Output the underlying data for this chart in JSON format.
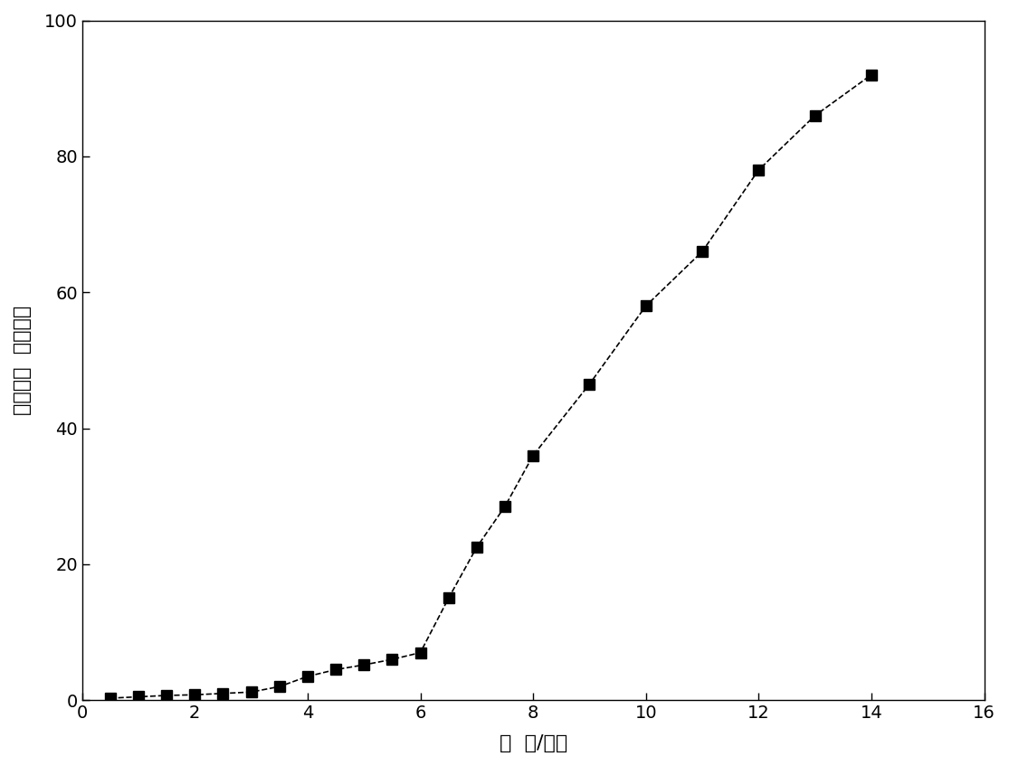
{
  "x": [
    0.5,
    1.0,
    1.5,
    2.0,
    2.5,
    3.0,
    3.5,
    4.0,
    4.5,
    5.0,
    5.5,
    6.0,
    6.5,
    7.0,
    7.5,
    8.0,
    9.0,
    10.0,
    11.0,
    12.0,
    13.0,
    14.0
  ],
  "y": [
    0.3,
    0.5,
    0.7,
    0.8,
    1.0,
    1.2,
    2.0,
    3.5,
    4.5,
    5.2,
    6.0,
    7.0,
    15.0,
    22.5,
    28.5,
    36.0,
    46.5,
    58.0,
    66.0,
    78.0,
    86.0,
    92.0
  ],
  "xlabel": "时  间/小时",
  "ylabel": "累积释放  率（％）",
  "xlim": [
    0,
    16
  ],
  "ylim": [
    0,
    100
  ],
  "xticks": [
    0,
    2,
    4,
    6,
    8,
    10,
    12,
    14,
    16
  ],
  "yticks": [
    0,
    20,
    40,
    60,
    80,
    100
  ],
  "marker": "s",
  "marker_color": "#000000",
  "line_style": "--",
  "line_color": "#000000",
  "marker_size": 8,
  "line_width": 1.2,
  "background_color": "#ffffff",
  "xlabel_fontsize": 16,
  "ylabel_fontsize": 16,
  "tick_fontsize": 14
}
